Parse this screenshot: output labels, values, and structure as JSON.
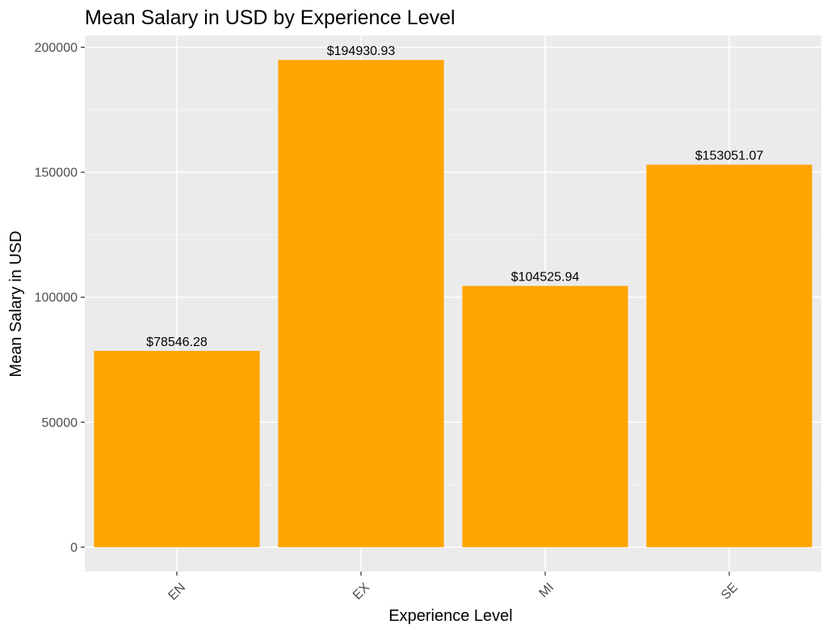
{
  "chart_data": {
    "type": "bar",
    "title": "Mean Salary in USD by Experience Level",
    "xlabel": "Experience Level",
    "ylabel": "Mean Salary in USD",
    "categories": [
      "EN",
      "EX",
      "MI",
      "SE"
    ],
    "values": [
      78546.28,
      194930.93,
      104525.94,
      153051.07
    ],
    "data_labels": [
      "$78546.28",
      "$194930.93",
      "$104525.94",
      "$153051.07"
    ],
    "yticks": [
      0,
      50000,
      100000,
      150000,
      200000
    ],
    "ytick_labels": [
      "0",
      "50000",
      "100000",
      "150000",
      "200000"
    ],
    "ylim": [
      -9746.5,
      204677.5
    ],
    "grid": true,
    "legend": "none",
    "colors": {
      "bar": "#FFA500",
      "panel_background": "#EBEBEB",
      "grid_major": "#FFFFFF",
      "grid_minor": "#F5F5F5",
      "tick_text": "#4D4D4D"
    }
  }
}
